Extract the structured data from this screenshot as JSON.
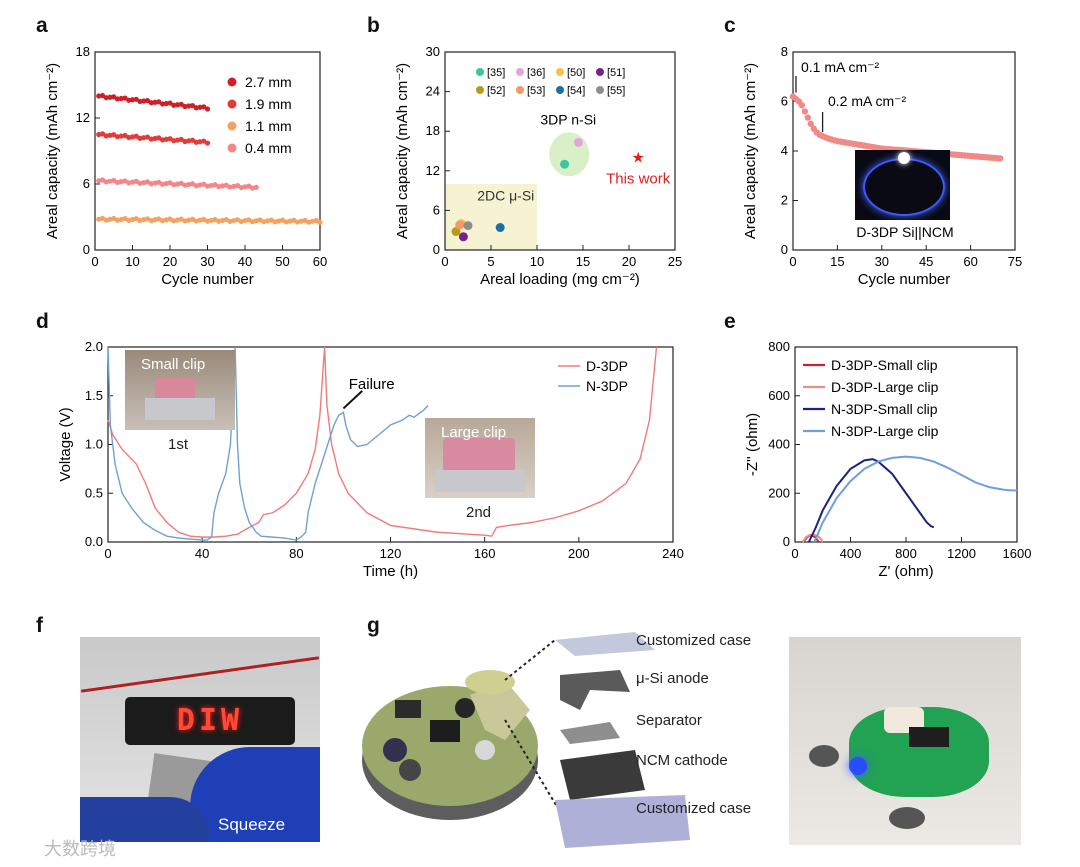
{
  "watermark": "大数跨境",
  "panels": {
    "a": {
      "label": "a"
    },
    "b": {
      "label": "b"
    },
    "c": {
      "label": "c"
    },
    "d": {
      "label": "d"
    },
    "e": {
      "label": "e"
    },
    "f": {
      "label": "f"
    },
    "g": {
      "label": "g"
    }
  },
  "chart_data": [
    {
      "id": "a",
      "type": "scatter",
      "xlabel": "Cycle number",
      "ylabel": "Areal capacity (mAh cm⁻²)",
      "xlim": [
        0,
        60
      ],
      "ylim": [
        0,
        18
      ],
      "xticks": [
        0,
        10,
        20,
        30,
        40,
        50,
        60
      ],
      "yticks": [
        0,
        6,
        12,
        18
      ],
      "series": [
        {
          "name": "2.7 mm",
          "color": "#d11f26",
          "cycles": 30,
          "start": 14.0,
          "end": 12.9
        },
        {
          "name": "1.9 mm",
          "color": "#e33a3a",
          "cycles": 30,
          "start": 10.5,
          "end": 9.8
        },
        {
          "name": "1.1 mm",
          "color": "#f4a261",
          "cycles": 60,
          "start": 2.8,
          "end": 2.6
        },
        {
          "name": "0.4 mm",
          "color": "#f4868a",
          "cycles": 43,
          "start": 6.3,
          "end": 5.7
        }
      ]
    },
    {
      "id": "b",
      "type": "scatter",
      "xlabel": "Areal loading (mg cm⁻²)",
      "ylabel": "Areal capacity (mAh cm⁻²)",
      "xlim": [
        0,
        25
      ],
      "ylim": [
        0,
        30
      ],
      "xticks": [
        0,
        5,
        10,
        15,
        20,
        25
      ],
      "yticks": [
        0,
        6,
        12,
        18,
        24,
        30
      ],
      "points": [
        {
          "name": "[35]",
          "color": "#3cc6a0",
          "x": 13.0,
          "y": 13.0
        },
        {
          "name": "[36]",
          "color": "#e7a3e0",
          "x": 14.5,
          "y": 16.3
        },
        {
          "name": "[50]",
          "color": "#f6c24a",
          "x": 1.8,
          "y": 4.0
        },
        {
          "name": "[51]",
          "color": "#7a1f8f",
          "x": 2.0,
          "y": 2.0
        },
        {
          "name": "[52]",
          "color": "#b79a1a",
          "x": 1.2,
          "y": 2.8
        },
        {
          "name": "[53]",
          "color": "#f29a63",
          "x": 1.6,
          "y": 3.8
        },
        {
          "name": "[54]",
          "color": "#1c6fa8",
          "x": 6.0,
          "y": 3.4
        },
        {
          "name": "[55]",
          "color": "#8d8d8d",
          "x": 2.5,
          "y": 3.7
        }
      ],
      "this_work": {
        "name": "This work",
        "x": 21.0,
        "y": 14.0,
        "color": "#e02020"
      },
      "annotations": {
        "region_2dc": "2DC μ-Si",
        "region_3dp": "3DP n-Si"
      }
    },
    {
      "id": "c",
      "type": "scatter",
      "xlabel": "Cycle number",
      "ylabel": "Areal capacity (mAh cm⁻²)",
      "xlim": [
        0,
        75
      ],
      "ylim": [
        0,
        8
      ],
      "xticks": [
        0,
        15,
        30,
        45,
        60,
        75
      ],
      "yticks": [
        0,
        2,
        4,
        6,
        8
      ],
      "points": [
        [
          0,
          6.2
        ],
        [
          1,
          6.1
        ],
        [
          2,
          6.0
        ],
        [
          3,
          5.85
        ],
        [
          4,
          5.6
        ],
        [
          5,
          5.35
        ],
        [
          6,
          5.1
        ],
        [
          7,
          4.9
        ],
        [
          8,
          4.75
        ],
        [
          9,
          4.65
        ],
        [
          10,
          4.6
        ],
        [
          12,
          4.5
        ],
        [
          15,
          4.4
        ],
        [
          20,
          4.3
        ],
        [
          25,
          4.2
        ],
        [
          30,
          4.1
        ],
        [
          35,
          4.05
        ],
        [
          40,
          4.0
        ],
        [
          45,
          3.95
        ],
        [
          50,
          3.9
        ],
        [
          55,
          3.85
        ],
        [
          60,
          3.8
        ],
        [
          65,
          3.75
        ],
        [
          70,
          3.7
        ]
      ],
      "color": "#f08a86",
      "annotations": {
        "rate1": "0.1 mA cm⁻²",
        "rate2": "0.2 mA cm⁻²",
        "inset": "D-3DP Si||NCM"
      }
    },
    {
      "id": "d",
      "type": "line",
      "xlabel": "Time (h)",
      "ylabel": "Voltage (V)",
      "xlim": [
        0,
        240
      ],
      "ylim": [
        0,
        2.0
      ],
      "xticks": [
        0,
        40,
        80,
        120,
        160,
        200,
        240
      ],
      "yticks": [
        0.0,
        0.5,
        1.0,
        1.5,
        2.0
      ],
      "series": [
        {
          "name": "D-3DP",
          "color": "#f07a7a",
          "x": [
            0,
            2,
            6,
            12,
            16,
            20,
            25,
            30,
            35,
            40,
            45,
            50,
            55,
            60,
            64,
            66,
            70,
            75,
            80,
            85,
            88,
            90,
            91,
            92,
            93,
            95,
            98,
            102,
            110,
            120,
            140,
            160,
            163,
            165,
            170,
            180,
            190,
            200,
            210,
            220,
            226,
            230,
            233
          ],
          "y": [
            1.25,
            1.1,
            0.95,
            0.8,
            0.6,
            0.35,
            0.2,
            0.1,
            0.06,
            0.05,
            0.05,
            0.06,
            0.08,
            0.15,
            0.2,
            0.28,
            0.3,
            0.38,
            0.5,
            0.7,
            0.95,
            1.3,
            1.65,
            2.0,
            1.4,
            1.0,
            0.7,
            0.5,
            0.3,
            0.17,
            0.1,
            0.07,
            0.06,
            0.15,
            0.17,
            0.2,
            0.25,
            0.32,
            0.42,
            0.6,
            0.85,
            1.25,
            2.0
          ]
        },
        {
          "name": "N-3DP",
          "color": "#6fa1d1",
          "x": [
            0,
            1,
            3,
            6,
            10,
            15,
            20,
            25,
            30,
            35,
            40,
            42,
            44,
            45,
            47,
            50,
            52,
            53,
            54,
            55,
            56,
            58,
            60,
            63,
            65,
            70,
            75,
            80,
            82,
            84,
            85,
            88,
            92,
            96,
            98,
            100,
            101,
            103,
            106,
            110,
            115,
            120,
            125,
            128,
            130,
            134,
            136
          ],
          "y": [
            2.0,
            1.2,
            0.8,
            0.5,
            0.35,
            0.2,
            0.12,
            0.06,
            0.04,
            0.03,
            0.02,
            0.02,
            0.05,
            0.3,
            0.5,
            0.7,
            1.0,
            1.5,
            2.0,
            1.0,
            0.6,
            0.35,
            0.2,
            0.1,
            0.06,
            0.05,
            0.04,
            0.02,
            0.05,
            0.1,
            0.3,
            0.6,
            0.9,
            1.2,
            1.3,
            1.33,
            1.2,
            1.05,
            0.98,
            1.0,
            1.1,
            1.2,
            1.25,
            1.3,
            1.28,
            1.35,
            1.4
          ]
        }
      ],
      "annotations": {
        "failure": "Failure",
        "inset1_label": "Small clip",
        "inset1_caption": "1st",
        "inset2_label": "Large clip",
        "inset2_caption": "2nd"
      }
    },
    {
      "id": "e",
      "type": "line",
      "xlabel": "Z' (ohm)",
      "ylabel": "-Z'' (ohm)",
      "xlim": [
        0,
        1600
      ],
      "ylim": [
        0,
        800
      ],
      "xticks": [
        0,
        400,
        800,
        1200,
        1600
      ],
      "yticks": [
        0,
        200,
        400,
        600,
        800
      ],
      "series": [
        {
          "name": "D-3DP-Small clip",
          "color": "#c8242b",
          "x": [
            60,
            80,
            100,
            120,
            140,
            160,
            170
          ],
          "y": [
            0,
            15,
            25,
            27,
            22,
            10,
            0
          ]
        },
        {
          "name": "D-3DP-Large clip",
          "color": "#f08a8a",
          "x": [
            55,
            80,
            110,
            140,
            170,
            190,
            200
          ],
          "y": [
            0,
            20,
            30,
            30,
            22,
            10,
            0
          ]
        },
        {
          "name": "N-3DP-Small clip",
          "color": "#1a237e",
          "x": [
            100,
            150,
            200,
            300,
            400,
            500,
            560,
            600,
            700,
            800,
            900,
            950,
            980,
            1000
          ],
          "y": [
            0,
            60,
            130,
            230,
            300,
            335,
            340,
            330,
            280,
            200,
            120,
            80,
            65,
            60
          ]
        },
        {
          "name": "N-3DP-Large clip",
          "color": "#6f9fd8",
          "x": [
            140,
            200,
            300,
            400,
            500,
            600,
            700,
            800,
            900,
            1000,
            1100,
            1200,
            1300,
            1400,
            1500,
            1550,
            1600
          ],
          "y": [
            0,
            80,
            180,
            250,
            300,
            330,
            345,
            350,
            345,
            330,
            305,
            275,
            245,
            225,
            215,
            212,
            212
          ]
        }
      ]
    }
  ],
  "photo_f": {
    "sign_text": "DIW",
    "caption": "Squeeze"
  },
  "panel_g": {
    "labels": [
      "Customized case",
      "μ-Si anode",
      "Separator",
      "NCM cathode",
      "Customized case"
    ]
  }
}
